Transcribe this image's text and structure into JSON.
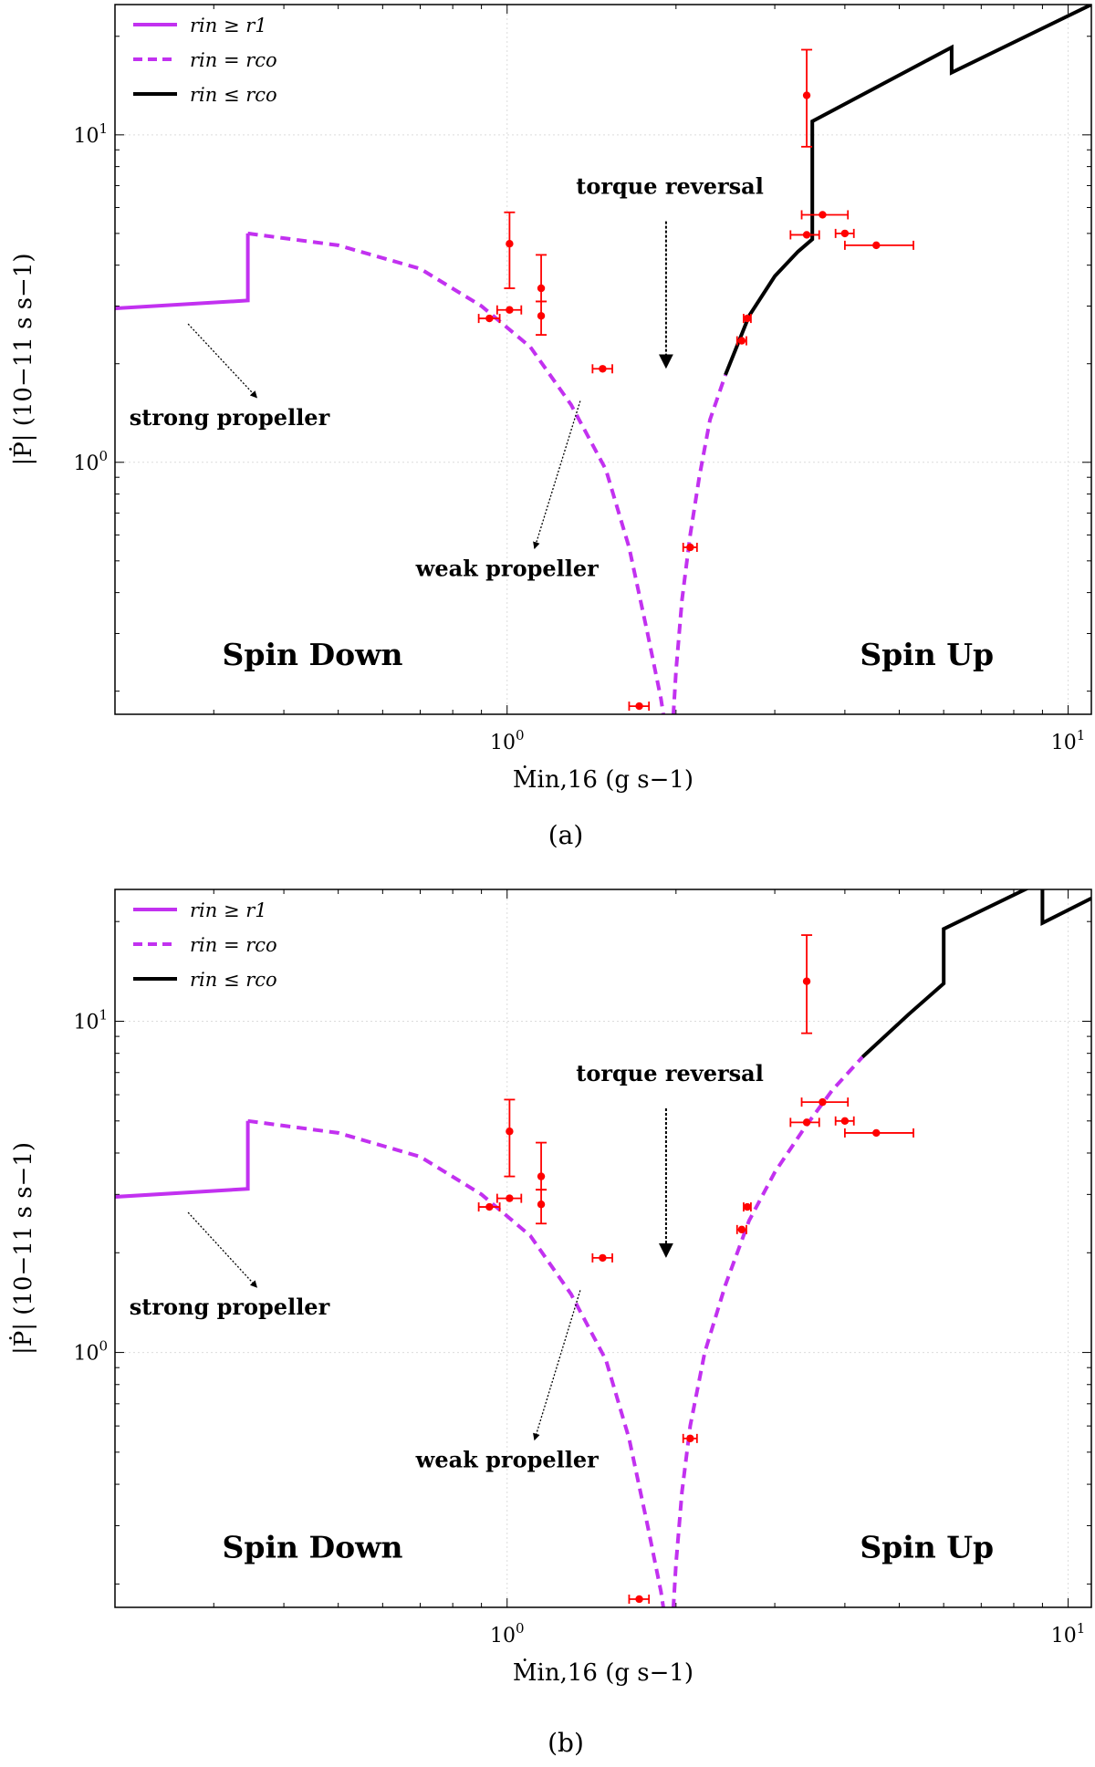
{
  "chart_data": [
    {
      "type": "line",
      "panel_label": "(a)",
      "xscale": "log",
      "yscale": "log",
      "xlim": [
        0.2,
        11
      ],
      "ylim": [
        0.17,
        25
      ],
      "xlabel": "Ṁin,16 (g s−1)",
      "ylabel": "|Ṗ| (10−11 s s−1)",
      "xticks": [
        {
          "base": "10",
          "exp": "0",
          "value": 1
        },
        {
          "base": "10",
          "exp": "1",
          "value": 10
        }
      ],
      "yticks": [
        {
          "base": "10",
          "exp": "0",
          "value": 1
        },
        {
          "base": "10",
          "exp": "1",
          "value": 10
        }
      ],
      "grid": true,
      "legend": {
        "position": "top-left",
        "entries": [
          {
            "label": "rin ≥ r1",
            "style": "solid",
            "color": "#c231f0"
          },
          {
            "label": "rin = rco",
            "style": "dashed",
            "color": "#c231f0"
          },
          {
            "label": "rin ≤ rco",
            "style": "solid",
            "color": "#000000"
          }
        ]
      },
      "series": [
        {
          "name": "rin ≥ r1",
          "style": "solid",
          "color": "#c231f0",
          "x": [
            0.2,
            0.345,
            0.345
          ],
          "y": [
            2.95,
            3.12,
            5.0
          ]
        },
        {
          "name": "rin = rco (spin down)",
          "style": "dashed",
          "color": "#c231f0",
          "x": [
            0.345,
            0.5,
            0.7,
            0.9,
            1.1,
            1.3,
            1.5,
            1.65,
            1.78,
            1.88,
            1.92
          ],
          "y": [
            5.0,
            4.6,
            3.9,
            3.0,
            2.25,
            1.5,
            0.95,
            0.55,
            0.3,
            0.19,
            0.15
          ]
        },
        {
          "name": "rin = rco (spin up)",
          "style": "dashed",
          "color": "#c231f0",
          "x": [
            1.97,
            2.0,
            2.05,
            2.12,
            2.2,
            2.3,
            2.45
          ],
          "y": [
            0.15,
            0.23,
            0.38,
            0.6,
            0.9,
            1.35,
            1.85
          ]
        },
        {
          "name": "rin ≤ rco",
          "style": "solid",
          "color": "#000000",
          "x": [
            2.45,
            2.7,
            3.0,
            3.3,
            3.5,
            3.5,
            6.2,
            6.2,
            11
          ],
          "y": [
            1.85,
            2.8,
            3.7,
            4.4,
            4.8,
            11.0,
            18.5,
            15.5,
            25
          ]
        }
      ],
      "data_points": [
        {
          "x": 0.93,
          "y": 2.75,
          "xerr": [
            0.04,
            0.04
          ],
          "yerr": [
            0,
            0
          ]
        },
        {
          "x": 1.01,
          "y": 2.92,
          "xerr": [
            0.05,
            0.05
          ],
          "yerr": [
            0,
            0
          ]
        },
        {
          "x": 1.01,
          "y": 4.65,
          "xerr": [
            0,
            0
          ],
          "yerr": [
            1.25,
            1.15
          ]
        },
        {
          "x": 1.15,
          "y": 3.4,
          "xerr": [
            0,
            0
          ],
          "yerr": [
            0.3,
            0.9
          ]
        },
        {
          "x": 1.15,
          "y": 2.8,
          "xerr": [
            0,
            0
          ],
          "yerr": [
            0.35,
            0.3
          ]
        },
        {
          "x": 1.48,
          "y": 1.93,
          "xerr": [
            0.06,
            0.06
          ],
          "yerr": [
            0,
            0
          ]
        },
        {
          "x": 1.72,
          "y": 0.18,
          "xerr": [
            0.07,
            0.07
          ],
          "yerr": [
            0,
            0
          ]
        },
        {
          "x": 2.12,
          "y": 0.55,
          "xerr": [
            0.06,
            0.06
          ],
          "yerr": [
            0,
            0
          ]
        },
        {
          "x": 2.62,
          "y": 2.35,
          "xerr": [
            0.05,
            0.05
          ],
          "yerr": [
            0,
            0
          ]
        },
        {
          "x": 2.68,
          "y": 2.75,
          "xerr": [
            0.04,
            0.04
          ],
          "yerr": [
            0,
            0
          ]
        },
        {
          "x": 3.42,
          "y": 4.95,
          "xerr": [
            0.22,
            0.18
          ],
          "yerr": [
            0,
            0
          ]
        },
        {
          "x": 3.42,
          "y": 13.2,
          "xerr": [
            0,
            0
          ],
          "yerr": [
            4.0,
            5.0
          ]
        },
        {
          "x": 3.65,
          "y": 5.7,
          "xerr": [
            0.3,
            0.4
          ],
          "yerr": [
            0,
            0
          ]
        },
        {
          "x": 4.0,
          "y": 5.0,
          "xerr": [
            0.15,
            0.15
          ],
          "yerr": [
            0,
            0
          ]
        },
        {
          "x": 4.55,
          "y": 4.6,
          "xerr": [
            0.55,
            0.75
          ],
          "yerr": [
            0,
            0
          ]
        }
      ],
      "annotations": [
        {
          "text": "torque reversal",
          "x": 1.95,
          "y": 6.6,
          "arrow_to_x": 1.92,
          "arrow_to_y": 1.95
        },
        {
          "text": "strong propeller",
          "x": 0.32,
          "y": 1.3,
          "arrow_from_x": 0.27,
          "arrow_from_y": 2.75
        },
        {
          "text": "weak propeller",
          "x": 1.0,
          "y": 0.45,
          "arrow_from_x": 1.35,
          "arrow_from_y": 1.6
        },
        {
          "text": "Spin Down",
          "x": 0.45,
          "y": 0.24
        },
        {
          "text": "Spin Up",
          "x": 5.6,
          "y": 0.24
        }
      ]
    },
    {
      "type": "line",
      "panel_label": "(b)",
      "xscale": "log",
      "yscale": "log",
      "xlim": [
        0.2,
        11
      ],
      "ylim": [
        0.17,
        25
      ],
      "xlabel": "Ṁin,16 (g s−1)",
      "ylabel": "|Ṗ| (10−11 s s−1)",
      "xticks": [
        {
          "base": "10",
          "exp": "0",
          "value": 1
        },
        {
          "base": "10",
          "exp": "1",
          "value": 10
        }
      ],
      "yticks": [
        {
          "base": "10",
          "exp": "0",
          "value": 1
        },
        {
          "base": "10",
          "exp": "1",
          "value": 10
        }
      ],
      "grid": true,
      "legend": {
        "position": "top-left",
        "entries": [
          {
            "label": "rin ≥ r1",
            "style": "solid",
            "color": "#c231f0"
          },
          {
            "label": "rin = rco",
            "style": "dashed",
            "color": "#c231f0"
          },
          {
            "label": "rin ≤ rco",
            "style": "solid",
            "color": "#000000"
          }
        ]
      },
      "series": [
        {
          "name": "rin ≥ r1",
          "style": "solid",
          "color": "#c231f0",
          "x": [
            0.2,
            0.345,
            0.345
          ],
          "y": [
            2.95,
            3.12,
            5.0
          ]
        },
        {
          "name": "rin = rco (spin down)",
          "style": "dashed",
          "color": "#c231f0",
          "x": [
            0.345,
            0.5,
            0.7,
            0.9,
            1.1,
            1.3,
            1.5,
            1.65,
            1.78,
            1.88,
            1.92
          ],
          "y": [
            5.0,
            4.6,
            3.9,
            3.0,
            2.25,
            1.5,
            0.95,
            0.55,
            0.3,
            0.19,
            0.15
          ]
        },
        {
          "name": "rin = rco (spin up)",
          "style": "dashed",
          "color": "#c231f0",
          "x": [
            1.97,
            2.0,
            2.05,
            2.12,
            2.25,
            2.45,
            2.7,
            3.0,
            3.4,
            3.8,
            4.3
          ],
          "y": [
            0.15,
            0.23,
            0.38,
            0.6,
            1.0,
            1.6,
            2.5,
            3.5,
            4.8,
            6.2,
            7.8
          ]
        },
        {
          "name": "rin ≤ rco",
          "style": "solid",
          "color": "#000000",
          "x": [
            4.3,
            5.2,
            6.0,
            6.0,
            9.0,
            9.0,
            11
          ],
          "y": [
            7.8,
            10.5,
            13.0,
            19.0,
            26.5,
            19.8,
            23.5
          ]
        }
      ],
      "data_points": [
        {
          "x": 0.93,
          "y": 2.75,
          "xerr": [
            0.04,
            0.04
          ],
          "yerr": [
            0,
            0
          ]
        },
        {
          "x": 1.01,
          "y": 2.92,
          "xerr": [
            0.05,
            0.05
          ],
          "yerr": [
            0,
            0
          ]
        },
        {
          "x": 1.01,
          "y": 4.65,
          "xerr": [
            0,
            0
          ],
          "yerr": [
            1.25,
            1.15
          ]
        },
        {
          "x": 1.15,
          "y": 3.4,
          "xerr": [
            0,
            0
          ],
          "yerr": [
            0.3,
            0.9
          ]
        },
        {
          "x": 1.15,
          "y": 2.8,
          "xerr": [
            0,
            0
          ],
          "yerr": [
            0.35,
            0.3
          ]
        },
        {
          "x": 1.48,
          "y": 1.93,
          "xerr": [
            0.06,
            0.06
          ],
          "yerr": [
            0,
            0
          ]
        },
        {
          "x": 1.72,
          "y": 0.18,
          "xerr": [
            0.07,
            0.07
          ],
          "yerr": [
            0,
            0
          ]
        },
        {
          "x": 2.12,
          "y": 0.55,
          "xerr": [
            0.06,
            0.06
          ],
          "yerr": [
            0,
            0
          ]
        },
        {
          "x": 2.62,
          "y": 2.35,
          "xerr": [
            0.05,
            0.05
          ],
          "yerr": [
            0,
            0
          ]
        },
        {
          "x": 2.68,
          "y": 2.75,
          "xerr": [
            0.04,
            0.04
          ],
          "yerr": [
            0,
            0
          ]
        },
        {
          "x": 3.42,
          "y": 4.95,
          "xerr": [
            0.22,
            0.18
          ],
          "yerr": [
            0,
            0
          ]
        },
        {
          "x": 3.42,
          "y": 13.2,
          "xerr": [
            0,
            0
          ],
          "yerr": [
            4.0,
            5.0
          ]
        },
        {
          "x": 3.65,
          "y": 5.7,
          "xerr": [
            0.3,
            0.4
          ],
          "yerr": [
            0,
            0
          ]
        },
        {
          "x": 4.0,
          "y": 5.0,
          "xerr": [
            0.15,
            0.15
          ],
          "yerr": [
            0,
            0
          ]
        },
        {
          "x": 4.55,
          "y": 4.6,
          "xerr": [
            0.55,
            0.75
          ],
          "yerr": [
            0,
            0
          ]
        }
      ],
      "annotations": [
        {
          "text": "torque reversal",
          "x": 1.95,
          "y": 6.6,
          "arrow_to_x": 1.92,
          "arrow_to_y": 1.95
        },
        {
          "text": "strong propeller",
          "x": 0.32,
          "y": 1.3,
          "arrow_from_x": 0.27,
          "arrow_from_y": 2.75
        },
        {
          "text": "weak propeller",
          "x": 1.0,
          "y": 0.45,
          "arrow_from_x": 1.35,
          "arrow_from_y": 1.6
        },
        {
          "text": "Spin Down",
          "x": 0.45,
          "y": 0.24
        },
        {
          "text": "Spin Up",
          "x": 5.6,
          "y": 0.24
        }
      ]
    }
  ]
}
